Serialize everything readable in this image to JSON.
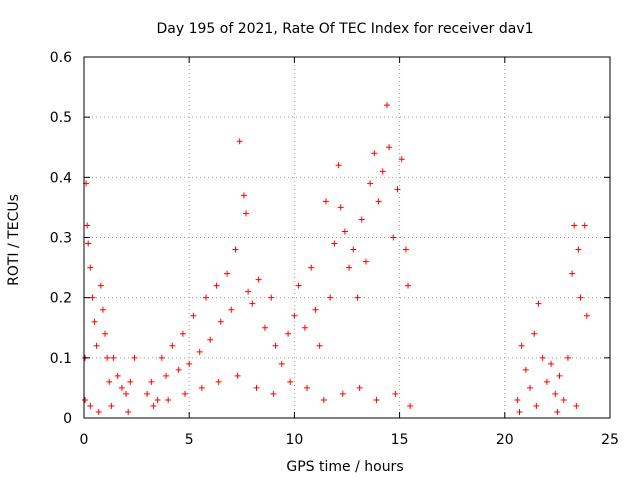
{
  "chart_data": {
    "type": "scatter",
    "title": "Day 195 of 2021, Rate Of TEC Index for receiver dav1",
    "xlabel": "GPS time / hours",
    "ylabel": "ROTI / TECUs",
    "xlim": [
      0,
      25
    ],
    "ylim": [
      0,
      0.6
    ],
    "xticks": [
      "0",
      "5",
      "10",
      "15",
      "20",
      "25"
    ],
    "yticks": [
      "0",
      "0.1",
      "0.2",
      "0.3",
      "0.4",
      "0.5",
      "0.6"
    ],
    "grid": true,
    "marker": "+",
    "color": "#ff0000",
    "series": [
      {
        "points": [
          [
            0.05,
            0.1
          ],
          [
            0.1,
            0.39
          ],
          [
            0.15,
            0.32
          ],
          [
            0.2,
            0.29
          ],
          [
            0.3,
            0.25
          ],
          [
            0.4,
            0.2
          ],
          [
            0.5,
            0.16
          ],
          [
            0.6,
            0.12
          ],
          [
            0.8,
            0.22
          ],
          [
            0.9,
            0.18
          ],
          [
            1.0,
            0.14
          ],
          [
            1.1,
            0.1
          ],
          [
            1.2,
            0.06
          ],
          [
            1.4,
            0.1
          ],
          [
            1.6,
            0.07
          ],
          [
            1.8,
            0.05
          ],
          [
            2.0,
            0.04
          ],
          [
            2.2,
            0.06
          ],
          [
            2.4,
            0.1
          ],
          [
            0.05,
            0.03
          ],
          [
            0.3,
            0.02
          ],
          [
            0.7,
            0.01
          ],
          [
            1.3,
            0.02
          ],
          [
            2.1,
            0.01
          ],
          [
            3.0,
            0.04
          ],
          [
            3.2,
            0.06
          ],
          [
            3.5,
            0.03
          ],
          [
            3.7,
            0.1
          ],
          [
            3.9,
            0.07
          ],
          [
            4.2,
            0.12
          ],
          [
            4.5,
            0.08
          ],
          [
            4.7,
            0.14
          ],
          [
            5.0,
            0.09
          ],
          [
            5.2,
            0.17
          ],
          [
            5.5,
            0.11
          ],
          [
            5.8,
            0.2
          ],
          [
            6.0,
            0.13
          ],
          [
            6.3,
            0.22
          ],
          [
            6.5,
            0.16
          ],
          [
            6.8,
            0.24
          ],
          [
            7.0,
            0.18
          ],
          [
            7.2,
            0.28
          ],
          [
            7.4,
            0.46
          ],
          [
            7.6,
            0.37
          ],
          [
            7.7,
            0.34
          ],
          [
            7.8,
            0.21
          ],
          [
            8.0,
            0.19
          ],
          [
            8.3,
            0.23
          ],
          [
            8.6,
            0.15
          ],
          [
            8.9,
            0.2
          ],
          [
            9.1,
            0.12
          ],
          [
            9.4,
            0.09
          ],
          [
            9.7,
            0.14
          ],
          [
            10.0,
            0.17
          ],
          [
            10.2,
            0.22
          ],
          [
            10.5,
            0.15
          ],
          [
            10.8,
            0.25
          ],
          [
            11.0,
            0.18
          ],
          [
            11.2,
            0.12
          ],
          [
            11.5,
            0.36
          ],
          [
            11.7,
            0.2
          ],
          [
            11.9,
            0.29
          ],
          [
            12.1,
            0.42
          ],
          [
            12.2,
            0.35
          ],
          [
            12.4,
            0.31
          ],
          [
            12.6,
            0.25
          ],
          [
            12.8,
            0.28
          ],
          [
            13.0,
            0.2
          ],
          [
            13.2,
            0.33
          ],
          [
            13.4,
            0.26
          ],
          [
            13.6,
            0.39
          ],
          [
            13.8,
            0.44
          ],
          [
            14.0,
            0.36
          ],
          [
            14.2,
            0.41
          ],
          [
            14.4,
            0.52
          ],
          [
            14.5,
            0.45
          ],
          [
            14.7,
            0.3
          ],
          [
            14.9,
            0.38
          ],
          [
            15.1,
            0.43
          ],
          [
            15.3,
            0.28
          ],
          [
            15.4,
            0.22
          ],
          [
            3.3,
            0.02
          ],
          [
            4.0,
            0.03
          ],
          [
            4.8,
            0.04
          ],
          [
            5.6,
            0.05
          ],
          [
            6.4,
            0.06
          ],
          [
            7.3,
            0.07
          ],
          [
            8.2,
            0.05
          ],
          [
            9.0,
            0.04
          ],
          [
            9.8,
            0.06
          ],
          [
            10.6,
            0.05
          ],
          [
            11.4,
            0.03
          ],
          [
            12.3,
            0.04
          ],
          [
            13.1,
            0.05
          ],
          [
            13.9,
            0.03
          ],
          [
            14.8,
            0.04
          ],
          [
            15.5,
            0.02
          ],
          [
            20.6,
            0.03
          ],
          [
            20.8,
            0.12
          ],
          [
            21.0,
            0.08
          ],
          [
            21.2,
            0.05
          ],
          [
            21.4,
            0.14
          ],
          [
            21.6,
            0.19
          ],
          [
            21.8,
            0.1
          ],
          [
            22.0,
            0.06
          ],
          [
            22.2,
            0.09
          ],
          [
            22.4,
            0.04
          ],
          [
            22.6,
            0.07
          ],
          [
            22.8,
            0.03
          ],
          [
            23.0,
            0.1
          ],
          [
            23.2,
            0.24
          ],
          [
            23.3,
            0.32
          ],
          [
            23.5,
            0.28
          ],
          [
            23.6,
            0.2
          ],
          [
            23.8,
            0.32
          ],
          [
            23.9,
            0.17
          ],
          [
            20.7,
            0.01
          ],
          [
            21.5,
            0.02
          ],
          [
            22.5,
            0.01
          ],
          [
            23.4,
            0.02
          ]
        ]
      }
    ]
  }
}
